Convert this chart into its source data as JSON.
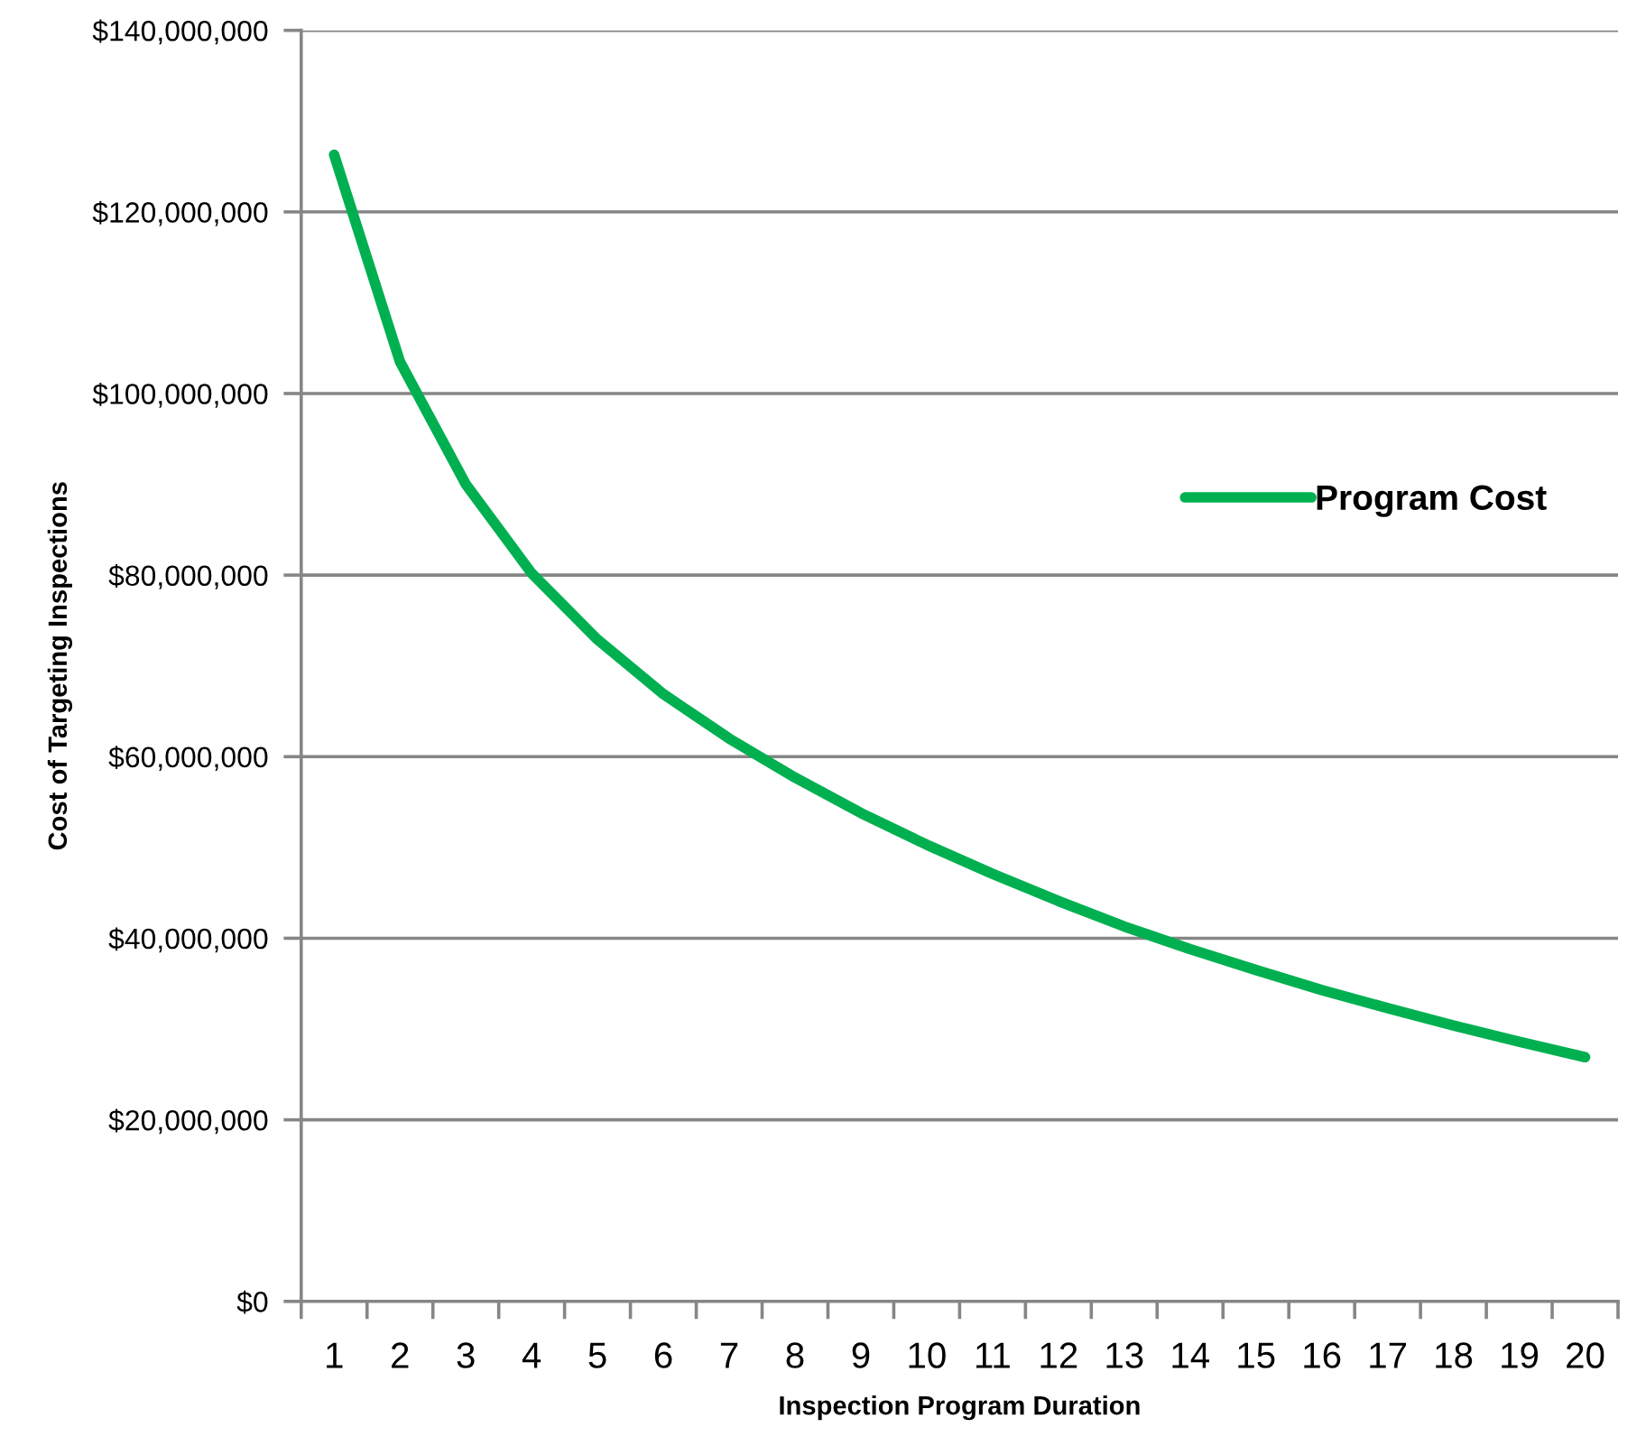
{
  "chart_data": {
    "type": "line",
    "xlabel": "Inspection Program Duration",
    "ylabel": "Cost of Targeting Inspections",
    "categories": [
      "1",
      "2",
      "3",
      "4",
      "5",
      "6",
      "7",
      "8",
      "9",
      "10",
      "11",
      "12",
      "13",
      "14",
      "15",
      "16",
      "17",
      "18",
      "19",
      "20"
    ],
    "series": [
      {
        "name": "Program Cost",
        "color": "#00b050",
        "values": [
          126300000,
          103500000,
          90000000,
          80200000,
          72900000,
          66900000,
          62000000,
          57700000,
          53800000,
          50300000,
          47100000,
          44100000,
          41300000,
          38800000,
          36500000,
          34300000,
          32300000,
          30400000,
          28600000,
          26900000
        ]
      }
    ],
    "ylim": [
      0,
      140000000
    ],
    "yticks": [
      {
        "value": 0,
        "label": "$0"
      },
      {
        "value": 20000000,
        "label": "$20,000,000"
      },
      {
        "value": 40000000,
        "label": "$40,000,000"
      },
      {
        "value": 60000000,
        "label": "$60,000,000"
      },
      {
        "value": 80000000,
        "label": "$80,000,000"
      },
      {
        "value": 100000000,
        "label": "$100,000,000"
      },
      {
        "value": 120000000,
        "label": "$120,000,000"
      },
      {
        "value": 140000000,
        "label": "$140,000,000"
      }
    ],
    "grid": "y",
    "legend": "right"
  }
}
